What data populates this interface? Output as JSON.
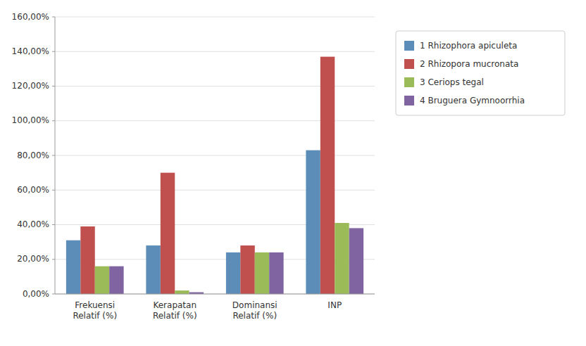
{
  "chart_data": {
    "type": "bar",
    "categories": [
      "Frekuensi\nRelatif (%)",
      "Kerapatan\nRelatif (%)",
      "Dominansi\nRelatif (%)",
      "INP"
    ],
    "series": [
      {
        "name": "1 Rhizophora apiculeta",
        "color": "#5B8DB8",
        "values": [
          0.31,
          0.28,
          0.24,
          0.83
        ]
      },
      {
        "name": "2 Rhizopora mucronata",
        "color": "#C0504D",
        "values": [
          0.39,
          0.7,
          0.28,
          1.37
        ]
      },
      {
        "name": "3 Ceriops tegal",
        "color": "#9BBB59",
        "values": [
          0.16,
          0.02,
          0.24,
          0.41
        ]
      },
      {
        "name": "4 Bruguera Gymnoorrhia",
        "color": "#8064A2",
        "values": [
          0.16,
          0.01,
          0.24,
          0.38
        ]
      }
    ],
    "ylim": [
      0,
      1.6
    ],
    "yticks": [
      {
        "value": 0.0,
        "label": "0,00%"
      },
      {
        "value": 0.2,
        "label": "20,00%"
      },
      {
        "value": 0.4,
        "label": "40,00%"
      },
      {
        "value": 0.6,
        "label": "60,00%"
      },
      {
        "value": 0.8,
        "label": "80,00%"
      },
      {
        "value": 1.0,
        "label": "100,00%"
      },
      {
        "value": 1.2,
        "label": "120,00%"
      },
      {
        "value": 1.4,
        "label": "140,00%"
      },
      {
        "value": 1.6,
        "label": "160,00%"
      }
    ],
    "grid": true,
    "legend": "right"
  }
}
